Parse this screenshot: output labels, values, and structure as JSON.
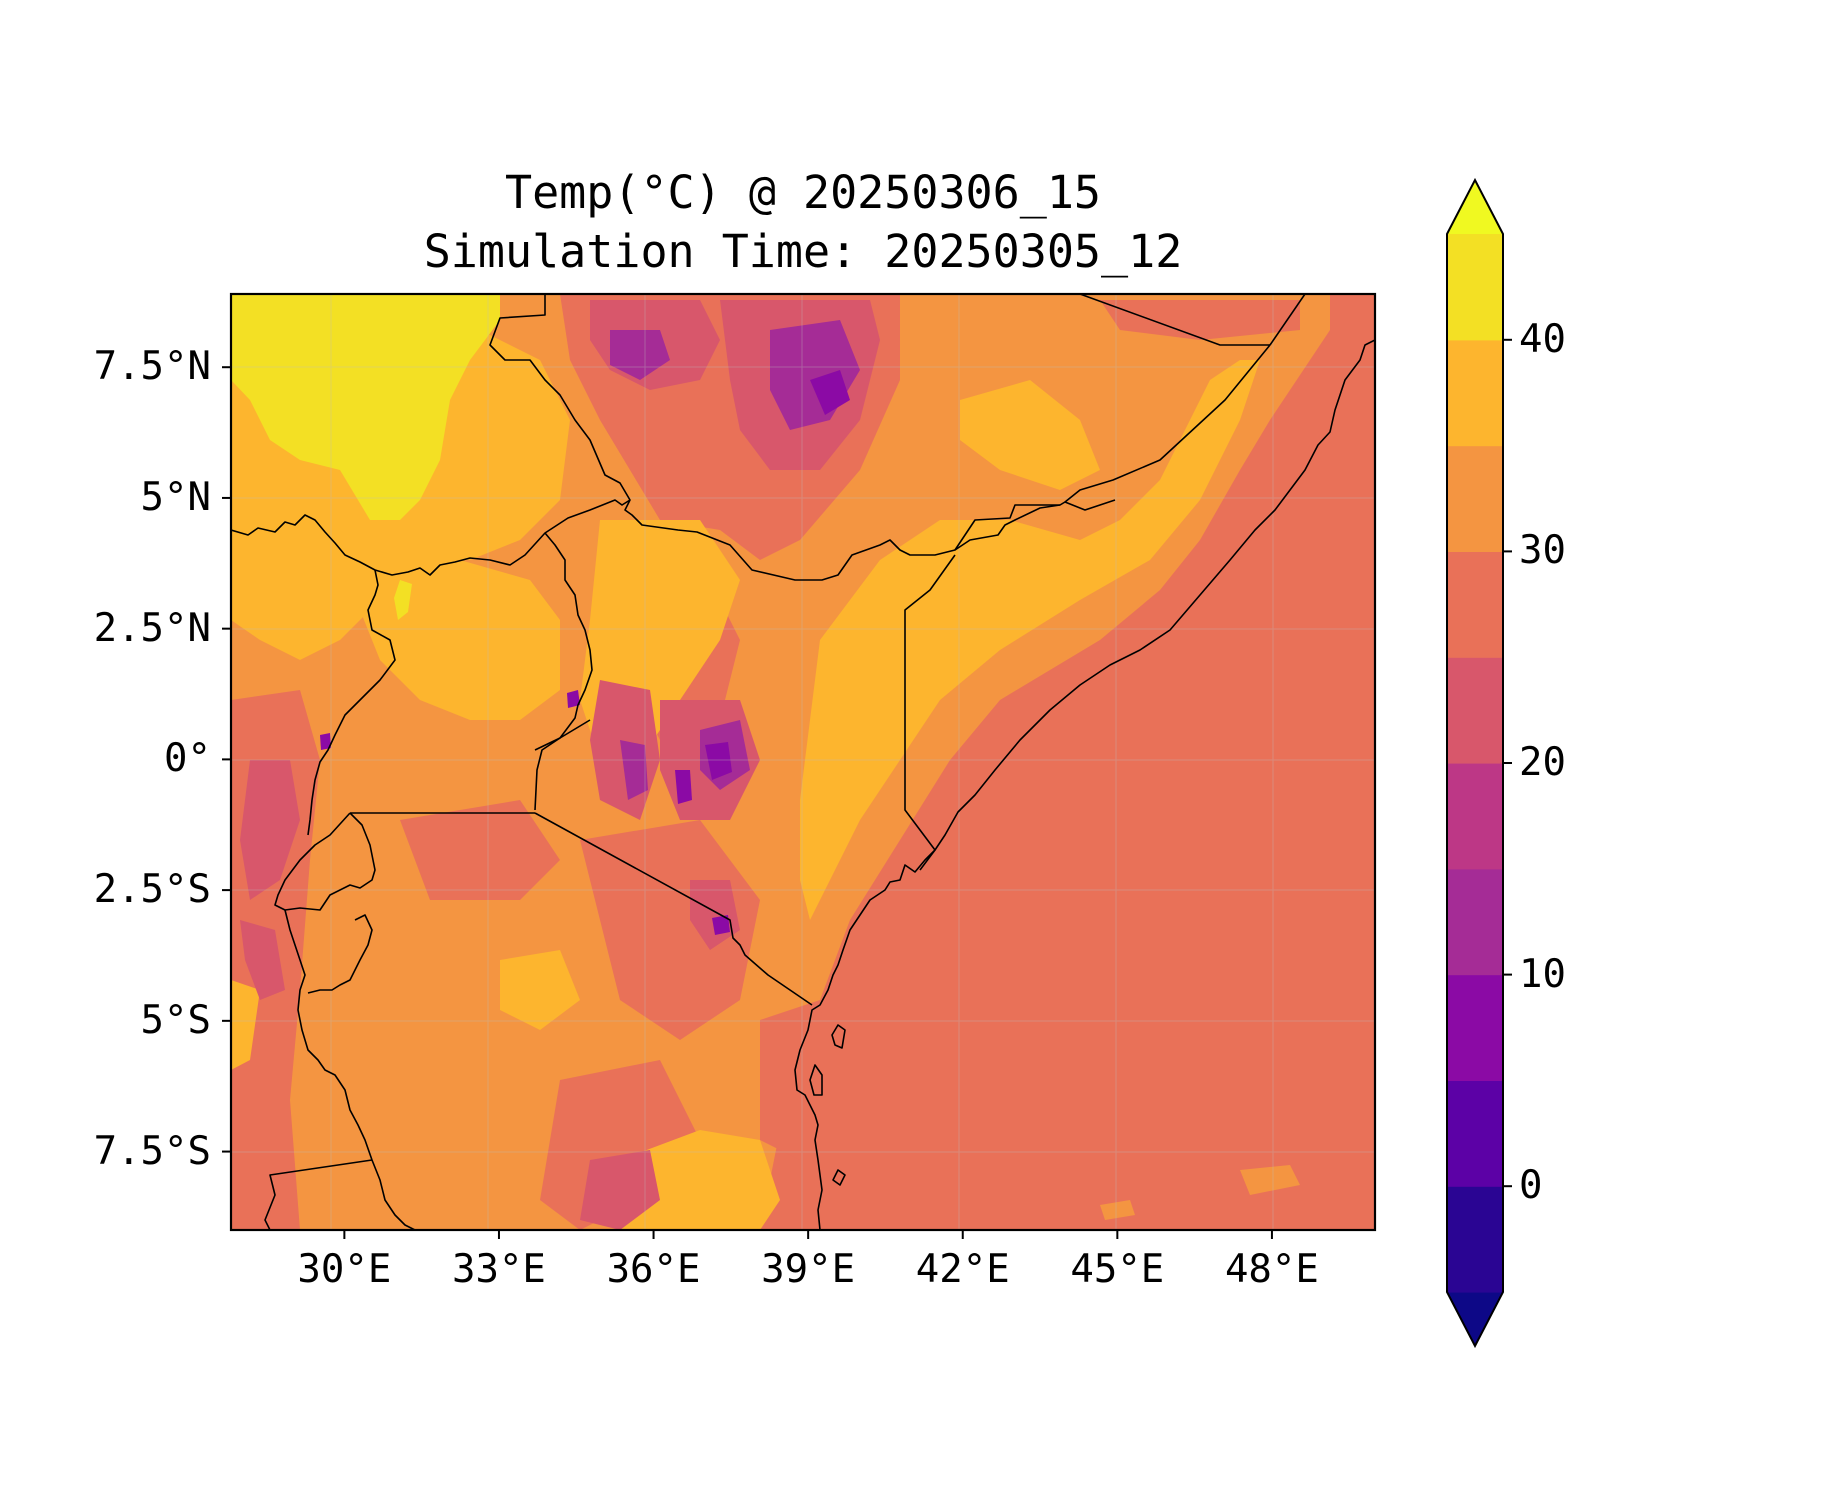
{
  "title": {
    "line1": "Temp(°C) @ 20250306_15",
    "line2": "Simulation Time: 20250305_12"
  },
  "map": {
    "variable": "Temp",
    "units": "°C",
    "valid_time": "20250306_15",
    "simulation_time": "20250305_12",
    "lon_range": [
      27.8,
      50.0
    ],
    "lat_range": [
      -9.0,
      8.9
    ],
    "x_ticks": [
      {
        "value": 30,
        "label": "30°E"
      },
      {
        "value": 33,
        "label": "33°E"
      },
      {
        "value": 36,
        "label": "36°E"
      },
      {
        "value": 39,
        "label": "39°E"
      },
      {
        "value": 42,
        "label": "42°E"
      },
      {
        "value": 45,
        "label": "45°E"
      },
      {
        "value": 48,
        "label": "48°E"
      }
    ],
    "y_ticks": [
      {
        "value": 7.5,
        "label": "7.5°N"
      },
      {
        "value": 5,
        "label": "5°N"
      },
      {
        "value": 2.5,
        "label": "2.5°N"
      },
      {
        "value": 0,
        "label": "0°"
      },
      {
        "value": -2.5,
        "label": "2.5°S"
      },
      {
        "value": -5,
        "label": "5°S"
      },
      {
        "value": -7.5,
        "label": "7.5°S"
      }
    ],
    "gridlines": true,
    "colorbar": {
      "colormap": "plasma",
      "levels": [
        -5,
        0,
        5,
        10,
        15,
        20,
        25,
        30,
        35,
        40,
        45
      ],
      "extend": "both",
      "colors": [
        "#0d0887",
        "#2a0593",
        "#5c01a6",
        "#8b0aa5",
        "#a52c96",
        "#bd3786",
        "#d8576b",
        "#e97158",
        "#f49541",
        "#fdb52e",
        "#f3e024",
        "#f0f921"
      ],
      "ticks": [
        {
          "value": 0,
          "label": "0"
        },
        {
          "value": 10,
          "label": "10"
        },
        {
          "value": 20,
          "label": "20"
        },
        {
          "value": 30,
          "label": "30"
        },
        {
          "value": 40,
          "label": "40"
        }
      ]
    }
  }
}
